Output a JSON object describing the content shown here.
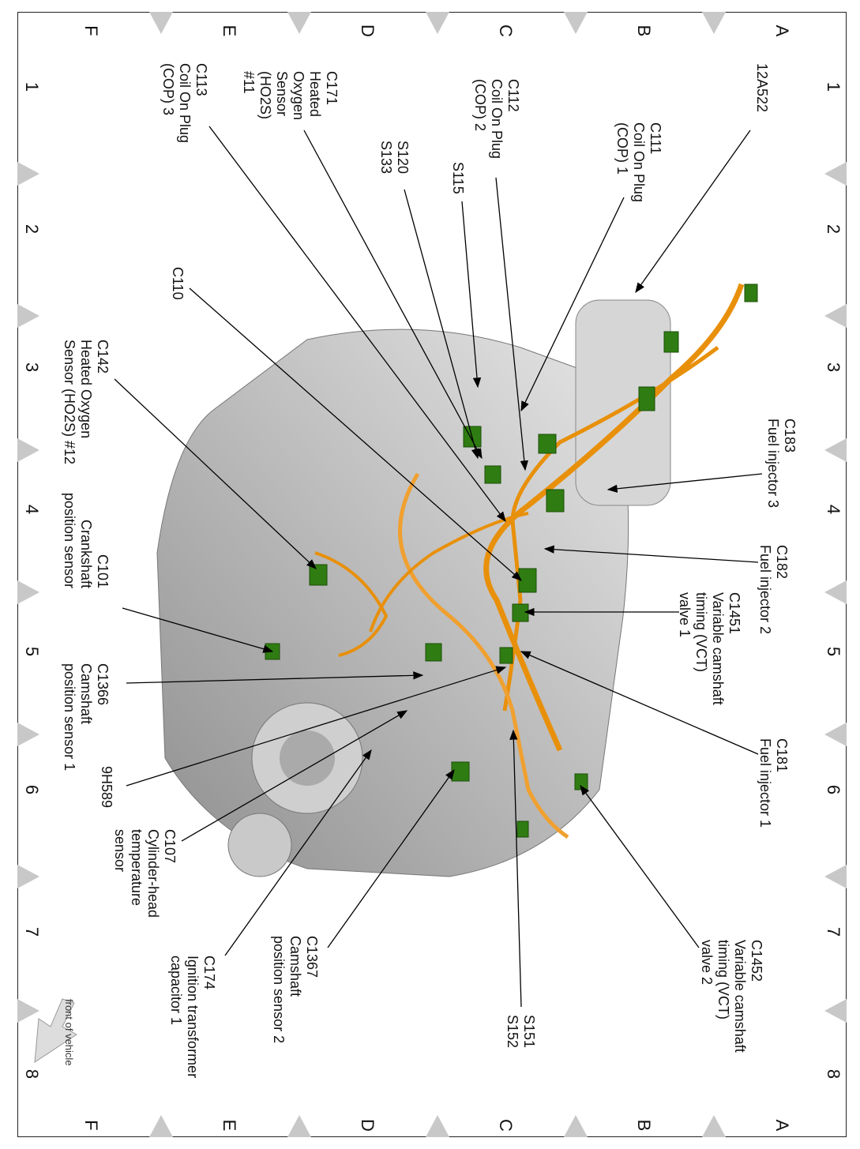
{
  "grid": {
    "letters": [
      "A",
      "B",
      "C",
      "D",
      "E",
      "F"
    ],
    "numbers": [
      "1",
      "2",
      "3",
      "4",
      "5",
      "6",
      "7",
      "8"
    ]
  },
  "labels": {
    "l12A522": [
      "12A522"
    ],
    "c111": [
      "C111",
      "Coil On Plug",
      "(COP) 1"
    ],
    "c112": [
      "C112",
      "Coil On Plug",
      "(COP) 2"
    ],
    "s115": [
      "S115"
    ],
    "s120": [
      "S120",
      "S133"
    ],
    "c171": [
      "C171",
      "Heated",
      "Oxygen",
      "Sensor",
      "(HO2S)",
      "#11"
    ],
    "c113": [
      "C113",
      "Coil On Plug",
      "(COP) 3"
    ],
    "c110": [
      "C110"
    ],
    "c142": [
      "C142",
      "Heated Oxygen",
      "Sensor (HO2S) #12"
    ],
    "c101": [
      "C101",
      "Crankshaft",
      "position sensor"
    ],
    "c1366": [
      "C1366",
      "Camshaft",
      "position sensor 1"
    ],
    "h9589": [
      "9H589"
    ],
    "c107": [
      "C107",
      "Cylinder-head",
      "temperature",
      "sensor"
    ],
    "c174": [
      "C174",
      "Ignition transformer",
      "capacitor 1"
    ],
    "c1367": [
      "C1367",
      "Camshaft",
      "position sensor 2"
    ],
    "s151": [
      "S151",
      "S152"
    ],
    "c1452": [
      "C1452",
      "Variable camshaft",
      "timing (VCT)",
      "valve 2"
    ],
    "c181": [
      "C181",
      "Fuel injector 1"
    ],
    "c1451": [
      "C1451",
      "Variable camshaft",
      "timing (VCT)",
      "valve 1"
    ],
    "c182": [
      "C182",
      "Fuel injector 2"
    ],
    "c183": [
      "C183",
      "Fuel injector 3"
    ]
  },
  "front_of_vehicle": "front of vehicle",
  "colors": {
    "harness": "#e8900a",
    "connector": "#2f7d12",
    "engine": "#bdbdbd"
  }
}
